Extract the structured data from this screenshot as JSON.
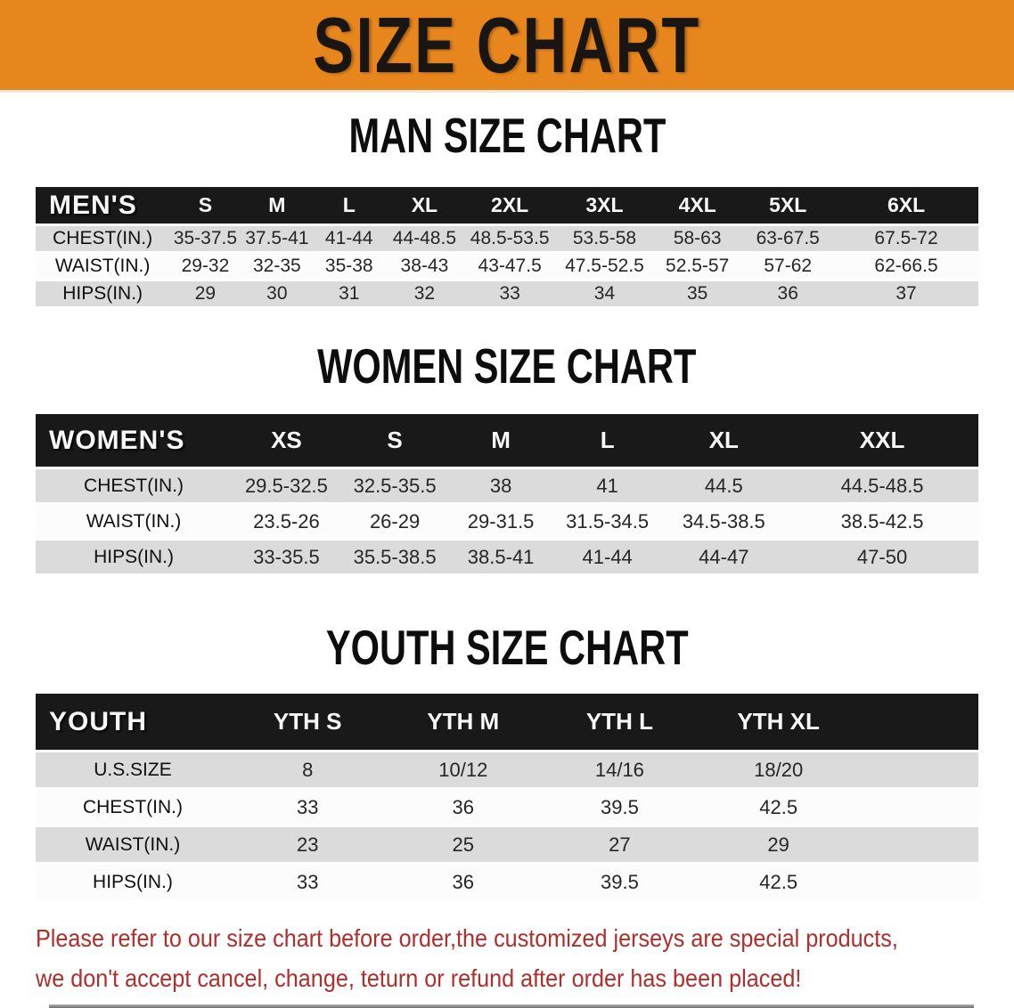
{
  "banner": {
    "title": "SIZE CHART",
    "bg_color": "#E6861D"
  },
  "sections": [
    {
      "heading": "MAN SIZE CHART",
      "table": {
        "label": "MEN'S",
        "columns": [
          "S",
          "M",
          "L",
          "XL",
          "2XL",
          "3XL",
          "4XL",
          "5XL",
          "6XL"
        ],
        "rows": [
          {
            "label": "CHEST(IN.)",
            "values": [
              "35-37.5",
              "37.5-41",
              "41-44",
              "44-48.5",
              "48.5-53.5",
              "53.5-58",
              "58-63",
              "63-67.5",
              "67.5-72"
            ]
          },
          {
            "label": "WAIST(IN.)",
            "values": [
              "29-32",
              "32-35",
              "35-38",
              "38-43",
              "43-47.5",
              "47.5-52.5",
              "52.5-57",
              "57-62",
              "62-66.5"
            ]
          },
          {
            "label": "HIPS(IN.)",
            "values": [
              "29",
              "30",
              "31",
              "32",
              "33",
              "34",
              "35",
              "36",
              "37"
            ]
          }
        ]
      }
    },
    {
      "heading": "WOMEN SIZE CHART",
      "table": {
        "label": "WOMEN'S",
        "columns": [
          "XS",
          "S",
          "M",
          "L",
          "XL",
          "XXL"
        ],
        "rows": [
          {
            "label": "CHEST(IN.)",
            "values": [
              "29.5-32.5",
              "32.5-35.5",
              "38",
              "41",
              "44.5",
              "44.5-48.5"
            ]
          },
          {
            "label": "WAIST(IN.)",
            "values": [
              "23.5-26",
              "26-29",
              "29-31.5",
              "31.5-34.5",
              "34.5-38.5",
              "38.5-42.5"
            ]
          },
          {
            "label": "HIPS(IN.)",
            "values": [
              "33-35.5",
              "35.5-38.5",
              "38.5-41",
              "41-44",
              "44-47",
              "47-50"
            ]
          }
        ]
      }
    },
    {
      "heading": "YOUTH SIZE CHART",
      "table": {
        "label": "YOUTH",
        "columns": [
          "YTH S",
          "YTH M",
          "YTH L",
          "YTH XL"
        ],
        "rows": [
          {
            "label": "U.S.SIZE",
            "values": [
              "8",
              "10/12",
              "14/16",
              "18/20"
            ]
          },
          {
            "label": "CHEST(IN.)",
            "values": [
              "33",
              "36",
              "39.5",
              "42.5"
            ]
          },
          {
            "label": "WAIST(IN.)",
            "values": [
              "23",
              "25",
              "27",
              "29"
            ]
          },
          {
            "label": "HIPS(IN.)",
            "values": [
              "33",
              "36",
              "39.5",
              "42.5"
            ]
          }
        ]
      }
    }
  ],
  "disclaimer": {
    "line1": "Please refer to our size chart before order,the customized jerseys are special products,",
    "line2": "we don't accept cancel, change, teturn or refund after order has been placed!",
    "color": "#AE2F2C"
  }
}
